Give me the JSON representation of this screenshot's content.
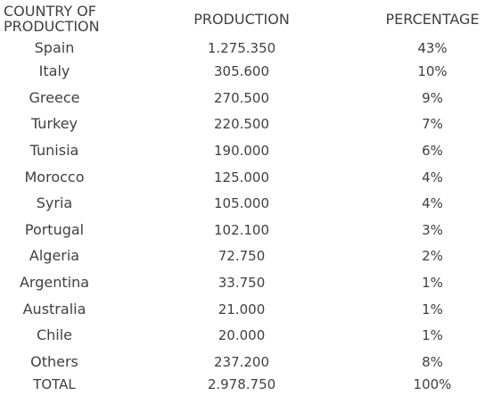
{
  "header": {
    "country": "COUNTRY OF PRODUCTION",
    "production": "PRODUCTION",
    "percentage": "PERCENTAGE"
  },
  "rows": [
    {
      "country": "Spain",
      "production": "1.275.350",
      "percentage": "43%"
    },
    {
      "country": "Italy",
      "production": "305.600",
      "percentage": "10%"
    },
    {
      "country": "Greece",
      "production": "270.500",
      "percentage": "9%"
    },
    {
      "country": "Turkey",
      "production": "220.500",
      "percentage": "7%"
    },
    {
      "country": "Tunisia",
      "production": "190.000",
      "percentage": "6%"
    },
    {
      "country": "Morocco",
      "production": "125.000",
      "percentage": "4%"
    },
    {
      "country": "Syria",
      "production": "105.000",
      "percentage": "4%"
    },
    {
      "country": "Portugal",
      "production": "102.100",
      "percentage": "3%"
    },
    {
      "country": "Algeria",
      "production": "72.750",
      "percentage": "2%"
    },
    {
      "country": "Argentina",
      "production": "33.750",
      "percentage": "1%"
    },
    {
      "country": "Australia",
      "production": "21.000",
      "percentage": "1%"
    },
    {
      "country": "Chile",
      "production": "20.000",
      "percentage": "1%"
    },
    {
      "country": "Others",
      "production": "237.200",
      "percentage": "8%"
    }
  ],
  "total": {
    "country": "TOTAL",
    "production": "2.978.750",
    "percentage": "100%"
  }
}
